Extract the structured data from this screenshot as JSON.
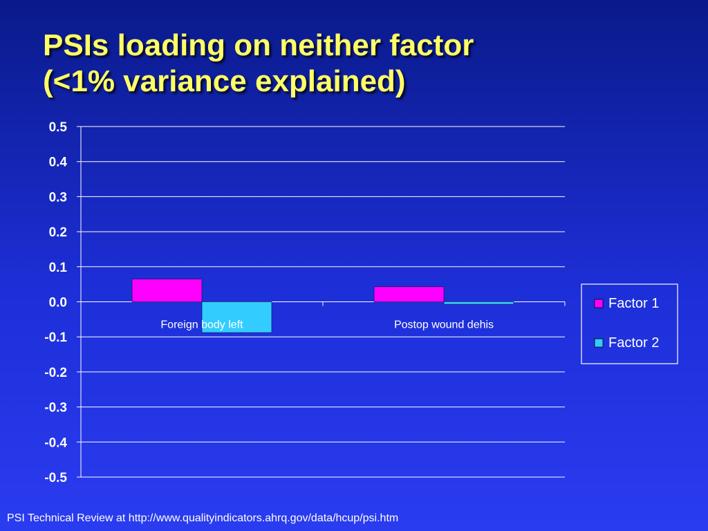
{
  "slide": {
    "title_line1": "PSIs loading on neither factor",
    "title_line2": "(<1% variance explained)",
    "footer": "PSI Technical Review at http://www.qualityindicators.ahrq.gov/data/hcup/psi.htm"
  },
  "colors": {
    "title": "#ffff66",
    "series_factor1": "#ff00ff",
    "series_factor2": "#33ccff",
    "axis_text": "#ffffff"
  },
  "chart_data": {
    "type": "bar",
    "categories": [
      "Foreign body left",
      "Postop wound dehis"
    ],
    "series": [
      {
        "name": "Factor 1",
        "values": [
          0.065,
          0.043
        ]
      },
      {
        "name": "Factor 2",
        "values": [
          -0.088,
          -0.007
        ]
      }
    ],
    "ylim": [
      -0.5,
      0.5
    ],
    "yticks": [
      "0.5",
      "0.4",
      "0.3",
      "0.2",
      "0.1",
      "0.0",
      "-0.1",
      "-0.2",
      "-0.3",
      "-0.4",
      "-0.5"
    ],
    "ytick_values": [
      0.5,
      0.4,
      0.3,
      0.2,
      0.1,
      0.0,
      -0.1,
      -0.2,
      -0.3,
      -0.4,
      -0.5
    ],
    "grid": true,
    "legend_position": "right"
  }
}
